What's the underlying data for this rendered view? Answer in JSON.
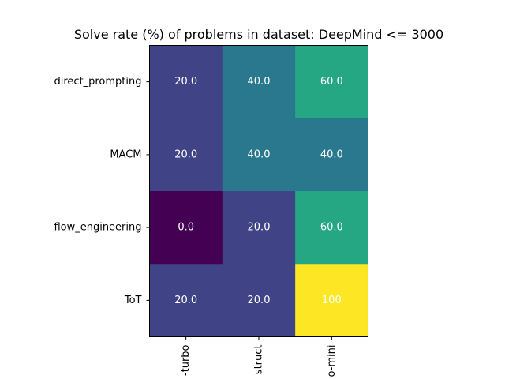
{
  "chart_data": {
    "type": "heatmap",
    "title": "Solve rate (%) of problems in dataset: DeepMind <= 3000",
    "rows": [
      "direct_prompting",
      "MACM",
      "flow_engineering",
      "ToT"
    ],
    "columns": [
      "-turbo",
      "struct",
      "o-mini"
    ],
    "values": [
      [
        20,
        40,
        60
      ],
      [
        20,
        40,
        40
      ],
      [
        0,
        20,
        60
      ],
      [
        20,
        20,
        100
      ]
    ],
    "value_labels": [
      [
        "20.0",
        "40.0",
        "60.0"
      ],
      [
        "20.0",
        "40.0",
        "40.0"
      ],
      [
        "0.0",
        "20.0",
        "60.0"
      ],
      [
        "20.0",
        "20.0",
        "100"
      ]
    ],
    "colormap": "viridis",
    "color_range": [
      0,
      100
    ],
    "grid": false,
    "legend": "none"
  }
}
